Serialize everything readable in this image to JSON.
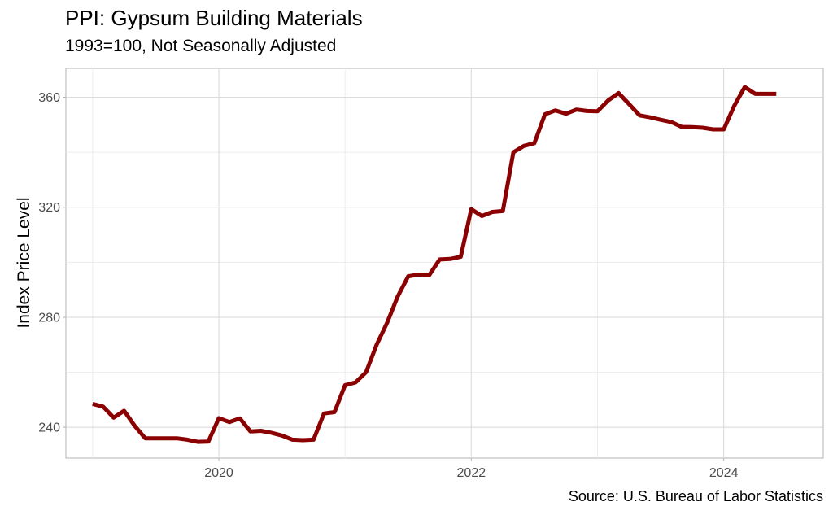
{
  "chart_data": {
    "type": "line",
    "title": "PPI: Gypsum Building Materials",
    "subtitle": "1993=100, Not Seasonally Adjusted",
    "ylabel": "Index Price Level",
    "xlabel": "",
    "caption": "Source: U.S. Bureau of Labor Statistics",
    "xlim": [
      "2018-10-15",
      "2024-10-15"
    ],
    "ylim": [
      228.8,
      370.5
    ],
    "x_ticks": [
      "2020",
      "2022",
      "2024"
    ],
    "y_ticks": [
      240,
      280,
      320,
      360
    ],
    "grid": true,
    "legend": "none",
    "line_color": "#8B0000",
    "series": [
      {
        "x": [
          "2019-01",
          "2019-02",
          "2019-03",
          "2019-04",
          "2019-05",
          "2019-06",
          "2019-07",
          "2019-08",
          "2019-09",
          "2019-10",
          "2019-11",
          "2019-12",
          "2020-01",
          "2020-02",
          "2020-03",
          "2020-04",
          "2020-05",
          "2020-06",
          "2020-07",
          "2020-08",
          "2020-09",
          "2020-10",
          "2020-11",
          "2020-12",
          "2021-01",
          "2021-02",
          "2021-03",
          "2021-04",
          "2021-05",
          "2021-06",
          "2021-07",
          "2021-08",
          "2021-09",
          "2021-10",
          "2021-11",
          "2021-12",
          "2022-01",
          "2022-02",
          "2022-03",
          "2022-04",
          "2022-05",
          "2022-06",
          "2022-07",
          "2022-08",
          "2022-09",
          "2022-10",
          "2022-11",
          "2022-12",
          "2023-01",
          "2023-02",
          "2023-03",
          "2023-04",
          "2023-05",
          "2023-06",
          "2023-07",
          "2023-08",
          "2023-09",
          "2023-10",
          "2023-11",
          "2023-12",
          "2024-01",
          "2024-02",
          "2024-03",
          "2024-04",
          "2024-05",
          "2024-06"
        ],
        "values": [
          248.5,
          247.5,
          243.5,
          246.0,
          240.5,
          236.0,
          236.0,
          236.0,
          236.0,
          235.5,
          234.7,
          234.8,
          243.3,
          241.9,
          243.2,
          238.5,
          238.7,
          238.0,
          237.0,
          235.5,
          235.3,
          235.5,
          245.0,
          245.5,
          255.3,
          256.3,
          260.0,
          270.0,
          278.0,
          287.5,
          294.9,
          295.5,
          295.3,
          301.0,
          301.2,
          302.0,
          319.3,
          316.8,
          318.3,
          318.6,
          340.0,
          342.3,
          343.3,
          353.8,
          355.2,
          354.0,
          355.5,
          355.0,
          354.9,
          358.8,
          361.5,
          357.5,
          353.4,
          352.7,
          351.8,
          351.0,
          349.2,
          349.1,
          348.9,
          348.3,
          348.3,
          356.9,
          363.7,
          361.2,
          361.2,
          361.2
        ]
      }
    ]
  }
}
